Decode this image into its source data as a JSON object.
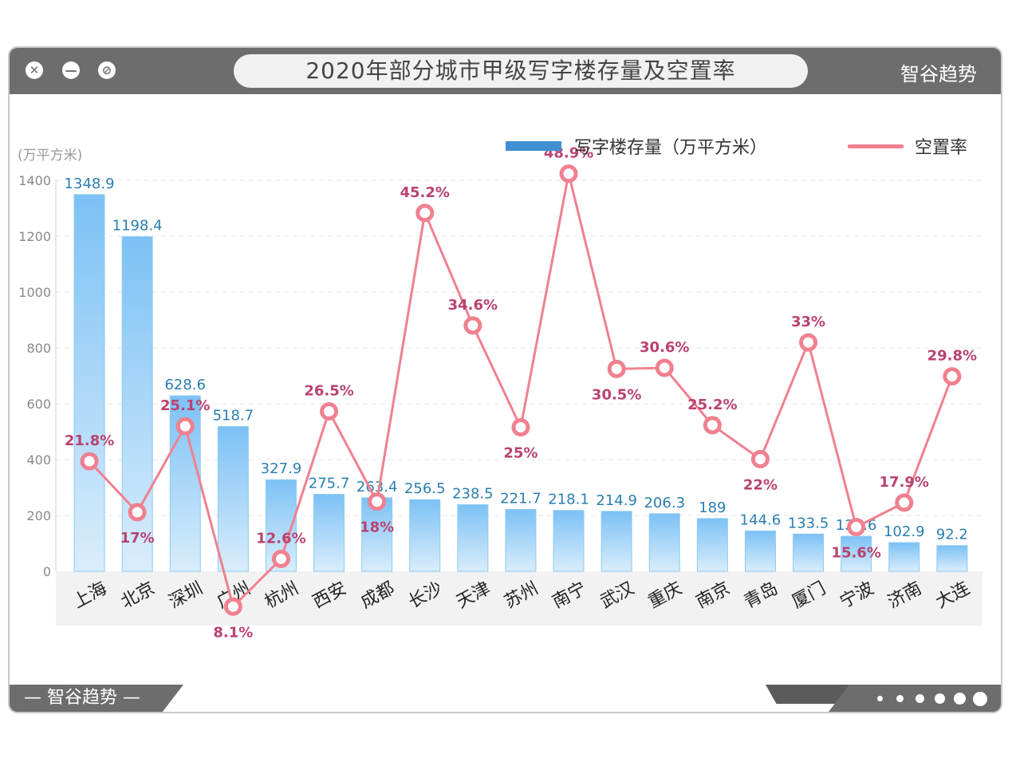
{
  "window": {
    "title": "2020年部分城市甲级写字楼存量及空置率",
    "brand": "智谷趋势",
    "footer_brand": "— 智谷趋势 —"
  },
  "colors": {
    "bar_top": "#7cc1f5",
    "bar_bottom": "#d9edfb",
    "bar_label": "#2a7fb0",
    "line": "#f08090",
    "line_label": "#b94270",
    "axis_text": "#888888",
    "legend_bar": "#3f8fd2"
  },
  "chart_data": {
    "type": "bar",
    "title": "2020年部分城市甲级写字楼存量及空置率",
    "ylabel": "(万平方米)",
    "ylim": [
      0,
      1400
    ],
    "yticks": [
      0,
      200,
      400,
      600,
      800,
      1000,
      1200,
      1400
    ],
    "grid": true,
    "legend_position": "top-right",
    "categories": [
      "上海",
      "北京",
      "深圳",
      "广州",
      "杭州",
      "西安",
      "成都",
      "长沙",
      "天津",
      "苏州",
      "南宁",
      "武汉",
      "重庆",
      "南京",
      "青岛",
      "厦门",
      "宁波",
      "济南",
      "大连"
    ],
    "series": [
      {
        "name": "写字楼存量（万平方米）",
        "type": "bar",
        "values": [
          1348.9,
          1198.4,
          628.6,
          518.7,
          327.9,
          275.7,
          263.4,
          256.5,
          238.5,
          221.7,
          218.1,
          214.9,
          206.3,
          189,
          144.6,
          133.5,
          125.6,
          102.9,
          92.2
        ],
        "labels": [
          "1348.9",
          "1198.4",
          "628.6",
          "518.7",
          "327.9",
          "275.7",
          "263.4",
          "256.5",
          "238.5",
          "221.7",
          "218.1",
          "214.9",
          "206.3",
          "189",
          "144.6",
          "133.5",
          "125.6",
          "102.9",
          "92.2"
        ]
      },
      {
        "name": "空置率",
        "type": "line",
        "values": [
          21.8,
          17,
          25.1,
          8.1,
          12.6,
          26.5,
          18,
          45.2,
          34.6,
          25,
          48.9,
          30.5,
          30.6,
          25.2,
          22,
          33,
          15.6,
          17.9,
          29.8
        ],
        "labels": [
          "21.8%",
          "17%",
          "25.1%",
          "8.1%",
          "12.6%",
          "26.5%",
          "18%",
          "45.2%",
          "34.6%",
          "25%",
          "48.9%",
          "30.5%",
          "30.6%",
          "25.2%",
          "22%",
          "33%",
          "15.6%",
          "17.9%",
          "29.8%"
        ]
      }
    ]
  }
}
